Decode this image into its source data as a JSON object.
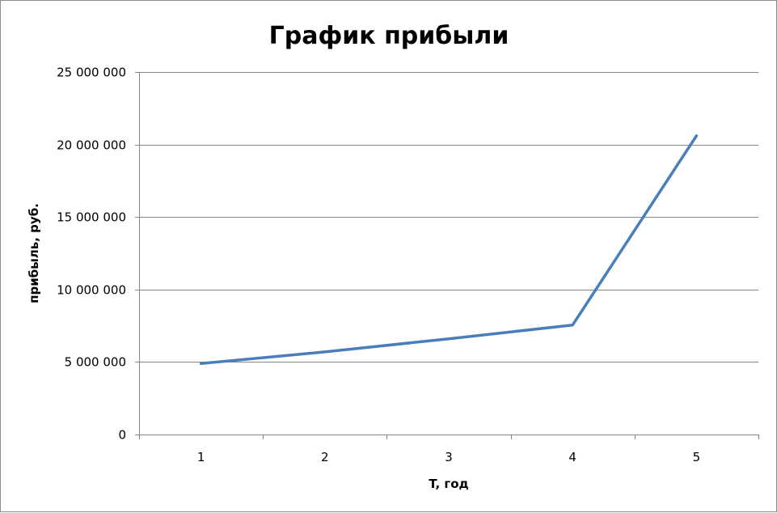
{
  "chart_data": {
    "type": "line",
    "title": "График прибыли",
    "xlabel": "T, год",
    "ylabel": "прибыль, руб.",
    "categories": [
      "1",
      "2",
      "3",
      "4",
      "5"
    ],
    "series": [
      {
        "values": [
          4900000,
          5700000,
          6600000,
          7550000,
          20600000
        ]
      }
    ],
    "ylim": [
      0,
      25000000
    ],
    "y_ticks": [
      0,
      5000000,
      10000000,
      15000000,
      20000000,
      25000000
    ],
    "y_tick_labels": [
      "0",
      "5 000 000",
      "10 000 000",
      "15 000 000",
      "20 000 000",
      "25 000 000"
    ],
    "grid": true,
    "legend": "none",
    "colors": {
      "series": "#4a7ebb",
      "grid": "#868686"
    }
  }
}
